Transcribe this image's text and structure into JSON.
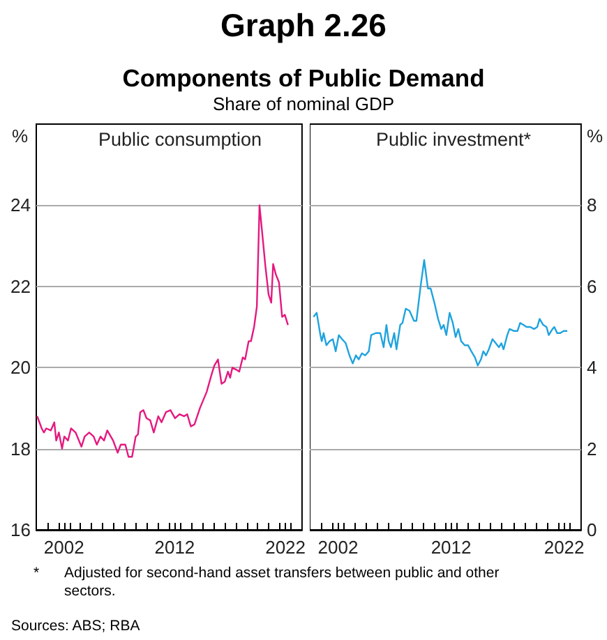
{
  "chart_data": [
    {
      "type": "other",
      "title": "Graph 2.26",
      "subtitle": "Components of Public Demand",
      "annotations": [
        "Share of nominal GDP",
        "* Adjusted for second-hand asset transfers between public and other sectors.",
        "Sources: ABS; RBA"
      ]
    },
    {
      "type": "line",
      "title": "Public consumption",
      "ylabel": "%",
      "xlim": [
        2000,
        2024
      ],
      "ylim": [
        16,
        26
      ],
      "yticks": [
        16,
        18,
        20,
        22,
        24
      ],
      "grid": "y",
      "xticks": [
        {
          "value": 2001,
          "label": null
        },
        {
          "value": 2002,
          "label": null
        },
        {
          "value": 2002.5,
          "label": "2002"
        },
        {
          "value": 2003,
          "label": null
        },
        {
          "value": 2004,
          "label": null
        },
        {
          "value": 2005,
          "label": null
        },
        {
          "value": 2006,
          "label": null
        },
        {
          "value": 2007,
          "label": null
        },
        {
          "value": 2008,
          "label": null
        },
        {
          "value": 2009,
          "label": null
        },
        {
          "value": 2010,
          "label": null
        },
        {
          "value": 2011,
          "label": null
        },
        {
          "value": 2012,
          "label": null
        },
        {
          "value": 2012.5,
          "label": "2012"
        },
        {
          "value": 2013,
          "label": null
        },
        {
          "value": 2014,
          "label": null
        },
        {
          "value": 2015,
          "label": null
        },
        {
          "value": 2016,
          "label": null
        },
        {
          "value": 2017,
          "label": null
        },
        {
          "value": 2018,
          "label": null
        },
        {
          "value": 2019,
          "label": null
        },
        {
          "value": 2020,
          "label": null
        },
        {
          "value": 2021,
          "label": null
        },
        {
          "value": 2022,
          "label": null
        },
        {
          "value": 2022.5,
          "label": "2022"
        },
        {
          "value": 2023,
          "label": null
        }
      ],
      "series": [
        {
          "color": "#e5197f",
          "x": [
            2000.08,
            2000.49,
            2000.69,
            2000.9,
            2001.31,
            2001.63,
            2001.8,
            2002.04,
            2002.33,
            2002.53,
            2002.86,
            2003.14,
            2003.55,
            2004.08,
            2004.37,
            2004.78,
            2005.18,
            2005.47,
            2005.8,
            2006.12,
            2006.41,
            2006.94,
            2007.35,
            2007.63,
            2008.04,
            2008.33,
            2008.65,
            2008.98,
            2009.18,
            2009.39,
            2009.67,
            2009.96,
            2010.29,
            2010.61,
            2011.02,
            2011.31,
            2011.71,
            2012.12,
            2012.53,
            2012.94,
            2013.35,
            2013.63,
            2013.96,
            2014.29,
            2014.78,
            2015.39,
            2015.8,
            2016.08,
            2016.41,
            2016.73,
            2017.02,
            2017.31,
            2017.51,
            2017.71,
            2018.04,
            2018.33,
            2018.65,
            2018.86,
            2019.18,
            2019.39,
            2019.67,
            2019.92,
            2020.16,
            2020.41,
            2020.69,
            2020.98,
            2021.22,
            2021.39,
            2021.63,
            2021.92,
            2022.2,
            2022.45,
            2022.73
          ],
          "values": [
            18.8,
            18.5,
            18.4,
            18.5,
            18.45,
            18.65,
            18.2,
            18.4,
            18.0,
            18.3,
            18.2,
            18.5,
            18.4,
            18.05,
            18.3,
            18.4,
            18.3,
            18.1,
            18.3,
            18.2,
            18.45,
            18.2,
            17.9,
            18.1,
            18.1,
            17.8,
            17.8,
            18.3,
            18.35,
            18.9,
            18.95,
            18.75,
            18.7,
            18.4,
            18.8,
            18.65,
            18.9,
            18.95,
            18.75,
            18.85,
            18.8,
            18.85,
            18.55,
            18.6,
            19.0,
            19.4,
            19.8,
            20.05,
            20.2,
            19.6,
            19.65,
            19.9,
            19.75,
            20.0,
            19.95,
            19.9,
            20.25,
            20.2,
            20.65,
            20.65,
            21.0,
            21.5,
            24.0,
            23.3,
            22.5,
            21.8,
            21.6,
            22.55,
            22.3,
            22.1,
            21.25,
            21.3,
            21.05
          ]
        }
      ]
    },
    {
      "type": "line",
      "title": "Public investment*",
      "ylabel": "%",
      "xlim": [
        2000,
        2024
      ],
      "ylim": [
        0,
        10
      ],
      "yticks": [
        0,
        2,
        4,
        6,
        8
      ],
      "grid": "y",
      "xticks": [
        {
          "value": 2001,
          "label": null
        },
        {
          "value": 2002,
          "label": null
        },
        {
          "value": 2002.5,
          "label": "2002"
        },
        {
          "value": 2003,
          "label": null
        },
        {
          "value": 2004,
          "label": null
        },
        {
          "value": 2005,
          "label": null
        },
        {
          "value": 2006,
          "label": null
        },
        {
          "value": 2007,
          "label": null
        },
        {
          "value": 2008,
          "label": null
        },
        {
          "value": 2009,
          "label": null
        },
        {
          "value": 2010,
          "label": null
        },
        {
          "value": 2011,
          "label": null
        },
        {
          "value": 2012,
          "label": null
        },
        {
          "value": 2012.5,
          "label": "2012"
        },
        {
          "value": 2013,
          "label": null
        },
        {
          "value": 2014,
          "label": null
        },
        {
          "value": 2015,
          "label": null
        },
        {
          "value": 2016,
          "label": null
        },
        {
          "value": 2017,
          "label": null
        },
        {
          "value": 2018,
          "label": null
        },
        {
          "value": 2019,
          "label": null
        },
        {
          "value": 2020,
          "label": null
        },
        {
          "value": 2021,
          "label": null
        },
        {
          "value": 2022,
          "label": null
        },
        {
          "value": 2022.5,
          "label": "2022"
        },
        {
          "value": 2023,
          "label": null
        }
      ],
      "series": [
        {
          "color": "#1fa3de",
          "x": [
            2000.33,
            2000.61,
            2000.94,
            2001.06,
            2001.22,
            2001.47,
            2001.76,
            2002.04,
            2002.29,
            2002.57,
            2002.86,
            2003.18,
            2003.51,
            2003.8,
            2004.08,
            2004.33,
            2004.61,
            2004.9,
            2005.22,
            2005.43,
            2005.84,
            2006.24,
            2006.53,
            2006.78,
            2006.98,
            2007.18,
            2007.47,
            2007.67,
            2008.0,
            2008.2,
            2008.49,
            2008.82,
            2009.22,
            2009.43,
            2009.8,
            2010.12,
            2010.45,
            2010.69,
            2011.02,
            2011.35,
            2011.63,
            2011.84,
            2012.08,
            2012.37,
            2012.65,
            2012.9,
            2013.14,
            2013.39,
            2013.71,
            2014.0,
            2014.29,
            2014.61,
            2014.86,
            2015.14,
            2015.35,
            2015.59,
            2015.84,
            2016.16,
            2016.45,
            2016.73,
            2016.94,
            2017.14,
            2017.47,
            2017.67,
            2018.08,
            2018.37,
            2018.61,
            2018.9,
            2019.18,
            2019.51,
            2019.84,
            2020.12,
            2020.33,
            2020.65,
            2020.94,
            2021.14,
            2021.47,
            2021.63,
            2021.88,
            2022.16,
            2022.45,
            2022.78
          ],
          "values": [
            5.25,
            5.35,
            4.8,
            4.65,
            4.85,
            4.55,
            4.65,
            4.7,
            4.4,
            4.8,
            4.7,
            4.6,
            4.3,
            4.1,
            4.3,
            4.2,
            4.35,
            4.3,
            4.4,
            4.8,
            4.85,
            4.85,
            4.5,
            5.05,
            4.65,
            4.5,
            4.85,
            4.45,
            5.05,
            5.1,
            5.45,
            5.4,
            5.15,
            5.15,
            6.0,
            6.65,
            5.95,
            5.95,
            5.6,
            5.2,
            4.95,
            5.05,
            4.8,
            5.35,
            5.1,
            4.75,
            4.95,
            4.65,
            4.55,
            4.55,
            4.4,
            4.25,
            4.05,
            4.2,
            4.4,
            4.3,
            4.45,
            4.7,
            4.6,
            4.5,
            4.6,
            4.45,
            4.8,
            4.95,
            4.9,
            4.9,
            5.1,
            5.05,
            5.0,
            5.0,
            4.95,
            5.0,
            5.2,
            5.05,
            5.0,
            4.8,
            4.95,
            5.0,
            4.85,
            4.85,
            4.9,
            4.9
          ]
        }
      ]
    }
  ]
}
